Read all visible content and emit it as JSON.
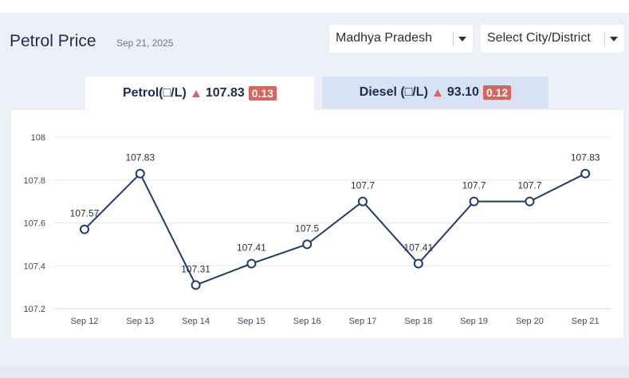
{
  "header": {
    "title": "Petrol Price",
    "date": "Sep 21, 2025"
  },
  "selects": {
    "state": "Madhya Pradesh",
    "city": "Select City/District"
  },
  "tabs": {
    "petrol": {
      "label": "Petrol(□/L)",
      "price": "107.83",
      "change": "0.13"
    },
    "diesel": {
      "label": "Diesel (□/L)",
      "price": "93.10",
      "change": "0.12"
    }
  },
  "colors": {
    "line": "#1f3b6e",
    "up": "#d6655e",
    "grid": "#e6e8ee"
  },
  "chart_data": {
    "type": "line",
    "categories": [
      "Sep 12",
      "Sep 13",
      "Sep 14",
      "Sep 15",
      "Sep 16",
      "Sep 17",
      "Sep 18",
      "Sep 19",
      "Sep 20",
      "Sep 21"
    ],
    "values": [
      107.57,
      107.83,
      107.31,
      107.41,
      107.5,
      107.7,
      107.41,
      107.7,
      107.7,
      107.83
    ],
    "data_labels": [
      "107.57",
      "107.83",
      "107.31",
      "107.41",
      "107.5",
      "107.7",
      "107.41",
      "107.7",
      "107.7",
      "107.83"
    ],
    "yticks": [
      "107.2",
      "107.4",
      "107.6",
      "107.8",
      "108"
    ],
    "ylim": [
      107.2,
      108
    ],
    "grid": true,
    "legend": "none"
  }
}
